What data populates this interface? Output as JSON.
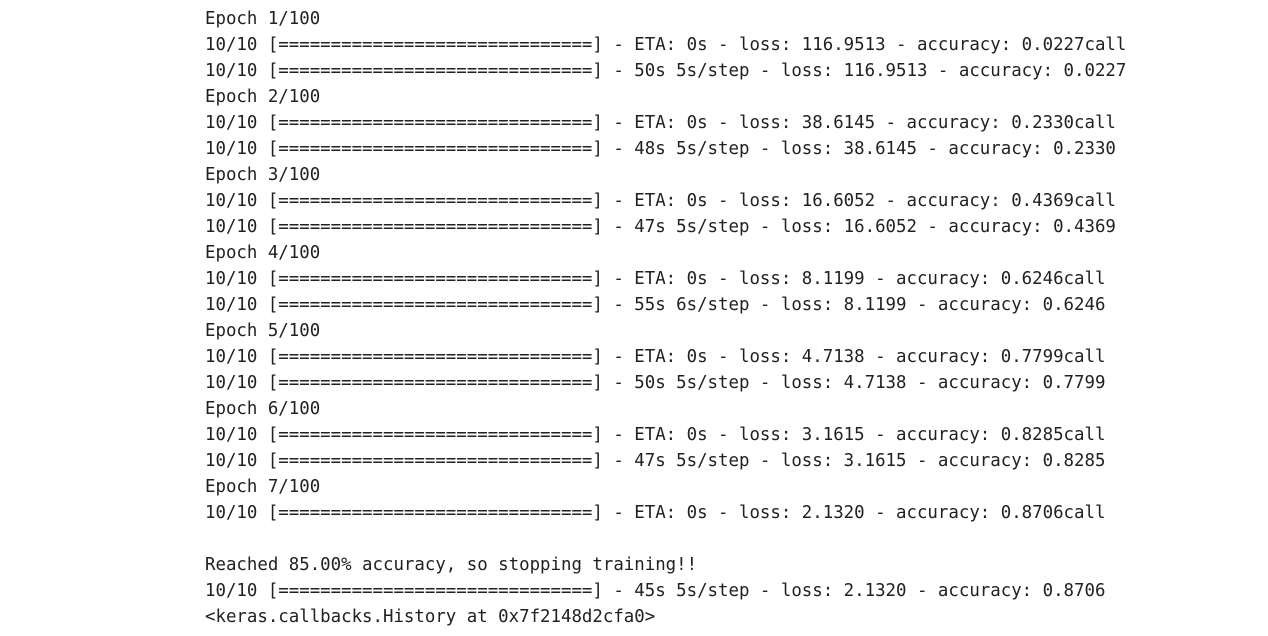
{
  "output": {
    "lines": [
      "Epoch 1/100",
      "10/10 [==============================] - ETA: 0s - loss: 116.9513 - accuracy: 0.0227call",
      "10/10 [==============================] - 50s 5s/step - loss: 116.9513 - accuracy: 0.0227",
      "Epoch 2/100",
      "10/10 [==============================] - ETA: 0s - loss: 38.6145 - accuracy: 0.2330call",
      "10/10 [==============================] - 48s 5s/step - loss: 38.6145 - accuracy: 0.2330",
      "Epoch 3/100",
      "10/10 [==============================] - ETA: 0s - loss: 16.6052 - accuracy: 0.4369call",
      "10/10 [==============================] - 47s 5s/step - loss: 16.6052 - accuracy: 0.4369",
      "Epoch 4/100",
      "10/10 [==============================] - ETA: 0s - loss: 8.1199 - accuracy: 0.6246call",
      "10/10 [==============================] - 55s 6s/step - loss: 8.1199 - accuracy: 0.6246",
      "Epoch 5/100",
      "10/10 [==============================] - ETA: 0s - loss: 4.7138 - accuracy: 0.7799call",
      "10/10 [==============================] - 50s 5s/step - loss: 4.7138 - accuracy: 0.7799",
      "Epoch 6/100",
      "10/10 [==============================] - ETA: 0s - loss: 3.1615 - accuracy: 0.8285call",
      "10/10 [==============================] - 47s 5s/step - loss: 3.1615 - accuracy: 0.8285",
      "Epoch 7/100",
      "10/10 [==============================] - ETA: 0s - loss: 2.1320 - accuracy: 0.8706call",
      "",
      "Reached 85.00% accuracy, so stopping training!!",
      "10/10 [==============================] - 45s 5s/step - loss: 2.1320 - accuracy: 0.8706",
      "<keras.callbacks.History at 0x7f2148d2cfa0>"
    ]
  }
}
